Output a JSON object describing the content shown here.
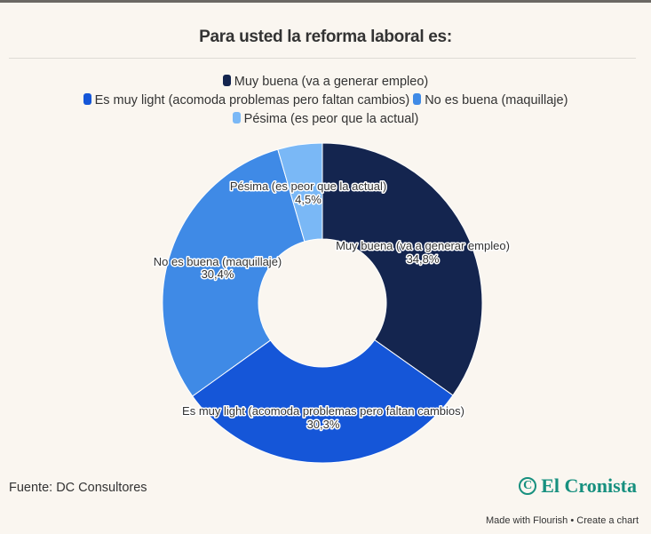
{
  "header": {
    "title": "Para usted la reforma laboral es:"
  },
  "chart_data": {
    "type": "pie",
    "variant": "donut",
    "title": "Para usted la reforma laboral es:",
    "categories": [
      "Muy buena (va a generar empleo)",
      "Es muy light (acomoda problemas pero faltan cambios)",
      "No es buena (maquillaje)",
      "Pésima (es peor que la actual)"
    ],
    "values": [
      34.8,
      30.3,
      30.4,
      4.5
    ],
    "value_labels": [
      "34,8%",
      "30,3%",
      "30,4%",
      "4,5%"
    ],
    "colors": [
      "#14254f",
      "#1556d8",
      "#3f8ae6",
      "#7ab8f6"
    ],
    "legend_placement": "top-center"
  },
  "footer": {
    "source": "Fuente: DC Consultores",
    "logo_text": "El Cronista",
    "made_with": "Made with Flourish",
    "separator": "•",
    "create_chart": "Create a chart"
  }
}
